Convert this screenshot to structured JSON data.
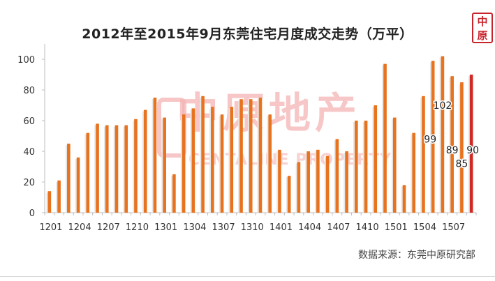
{
  "chart_data": {
    "type": "bar",
    "title": "2012年至2015年9月东莞住宅月度成交走势（万平）",
    "source": "数据来源：东莞中原研究部",
    "watermark": {
      "cn": "中原地产",
      "en": "CENTALINE PROPERTY"
    },
    "logo": "中原",
    "ylim": [
      0,
      110
    ],
    "yticks": [
      0,
      20,
      40,
      60,
      80,
      100
    ],
    "colors": {
      "bar": "#e8731f",
      "bar_highlight": "#d02a24",
      "watermark": "#f4b3b3",
      "logo": "#c8242b"
    },
    "grid": false,
    "xtick_labels": [
      {
        "label": "1201",
        "index": 0
      },
      {
        "label": "1204",
        "index": 3
      },
      {
        "label": "1207",
        "index": 6
      },
      {
        "label": "1210",
        "index": 9
      },
      {
        "label": "1301",
        "index": 12
      },
      {
        "label": "1304",
        "index": 15
      },
      {
        "label": "1307",
        "index": 18
      },
      {
        "label": "1310",
        "index": 21
      },
      {
        "label": "1401",
        "index": 24
      },
      {
        "label": "1404",
        "index": 27
      },
      {
        "label": "1407",
        "index": 30
      },
      {
        "label": "1410",
        "index": 33
      },
      {
        "label": "1501",
        "index": 36
      },
      {
        "label": "1504",
        "index": 39
      },
      {
        "label": "1507",
        "index": 42
      }
    ],
    "categories": [
      "1201",
      "1202",
      "1203",
      "1204",
      "1205",
      "1206",
      "1207",
      "1208",
      "1209",
      "1210",
      "1211",
      "1212",
      "1301",
      "1302",
      "1303",
      "1304",
      "1305",
      "1306",
      "1307",
      "1308",
      "1309",
      "1310",
      "1311",
      "1312",
      "1401",
      "1402",
      "1403",
      "1404",
      "1405",
      "1406",
      "1407",
      "1408",
      "1409",
      "1410",
      "1411",
      "1412",
      "1501",
      "1502",
      "1503",
      "1504",
      "1505",
      "1506",
      "1507",
      "1508",
      "1509"
    ],
    "values": [
      14,
      21,
      45,
      36,
      52,
      58,
      57,
      57,
      57,
      61,
      67,
      75,
      62,
      25,
      64,
      68,
      76,
      69,
      64,
      69,
      74,
      74,
      75,
      64,
      41,
      24,
      33,
      40,
      41,
      37,
      48,
      40,
      60,
      60,
      70,
      97,
      62,
      18,
      52,
      76,
      99,
      102,
      89,
      85,
      90
    ],
    "data_labels": [
      {
        "text": "102",
        "index": 41
      },
      {
        "text": "99",
        "index": 40
      },
      {
        "text": "89",
        "index": 42
      },
      {
        "text": "85",
        "index": 43
      },
      {
        "text": "90",
        "index": 44
      }
    ]
  }
}
